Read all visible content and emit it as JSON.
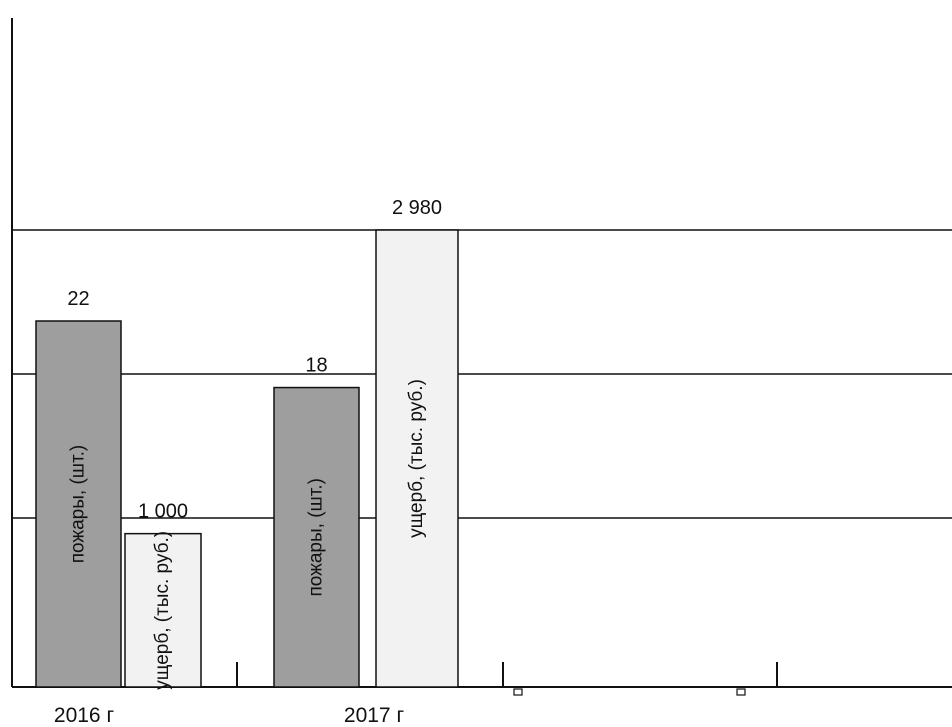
{
  "chart_data": {
    "type": "bar",
    "categories": [
      "2016 г",
      "2017 г"
    ],
    "series": [
      {
        "name": "пожары, (шт.)",
        "values": [
          22,
          18
        ],
        "value_labels": [
          "22",
          "18"
        ],
        "color": "#9e9e9e"
      },
      {
        "name": "ущерб, (тыс. руб.)",
        "values": [
          1000,
          2980
        ],
        "value_labels": [
          "1 000",
          "2 980"
        ],
        "color": "#f2f2f2"
      }
    ],
    "legend": "none",
    "grid": true
  }
}
